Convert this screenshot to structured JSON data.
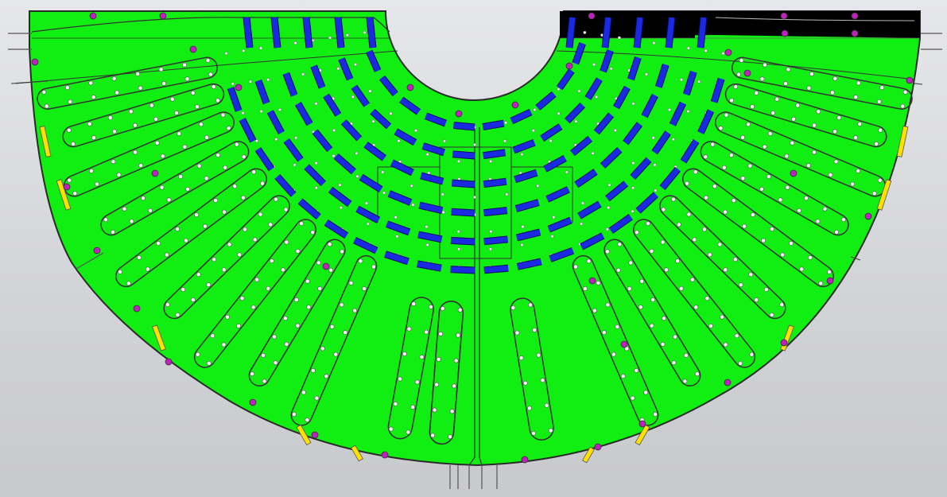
{
  "diagram": {
    "title": "",
    "colors": {
      "background": "#d9dadd",
      "board": "#11ee11",
      "outline": "#2a2a2a",
      "trace": "#333333",
      "cut_region": "#000000",
      "blue_segment": "#1a2ae0",
      "blue_edge": "#0a0a60",
      "yellow_marker": "#ffe000",
      "magenta_hole": "#c020c0",
      "white_dot": "#f4f4f4"
    },
    "shape": "half-annulus board with central semicircular cutout",
    "inner_cutout_radius": 112,
    "blue_arc_rows": 6,
    "blue_radial_columns_per_side": 4,
    "loop_channels_per_side": 9,
    "yellow_markers": 12,
    "magenta_holes": 36
  }
}
